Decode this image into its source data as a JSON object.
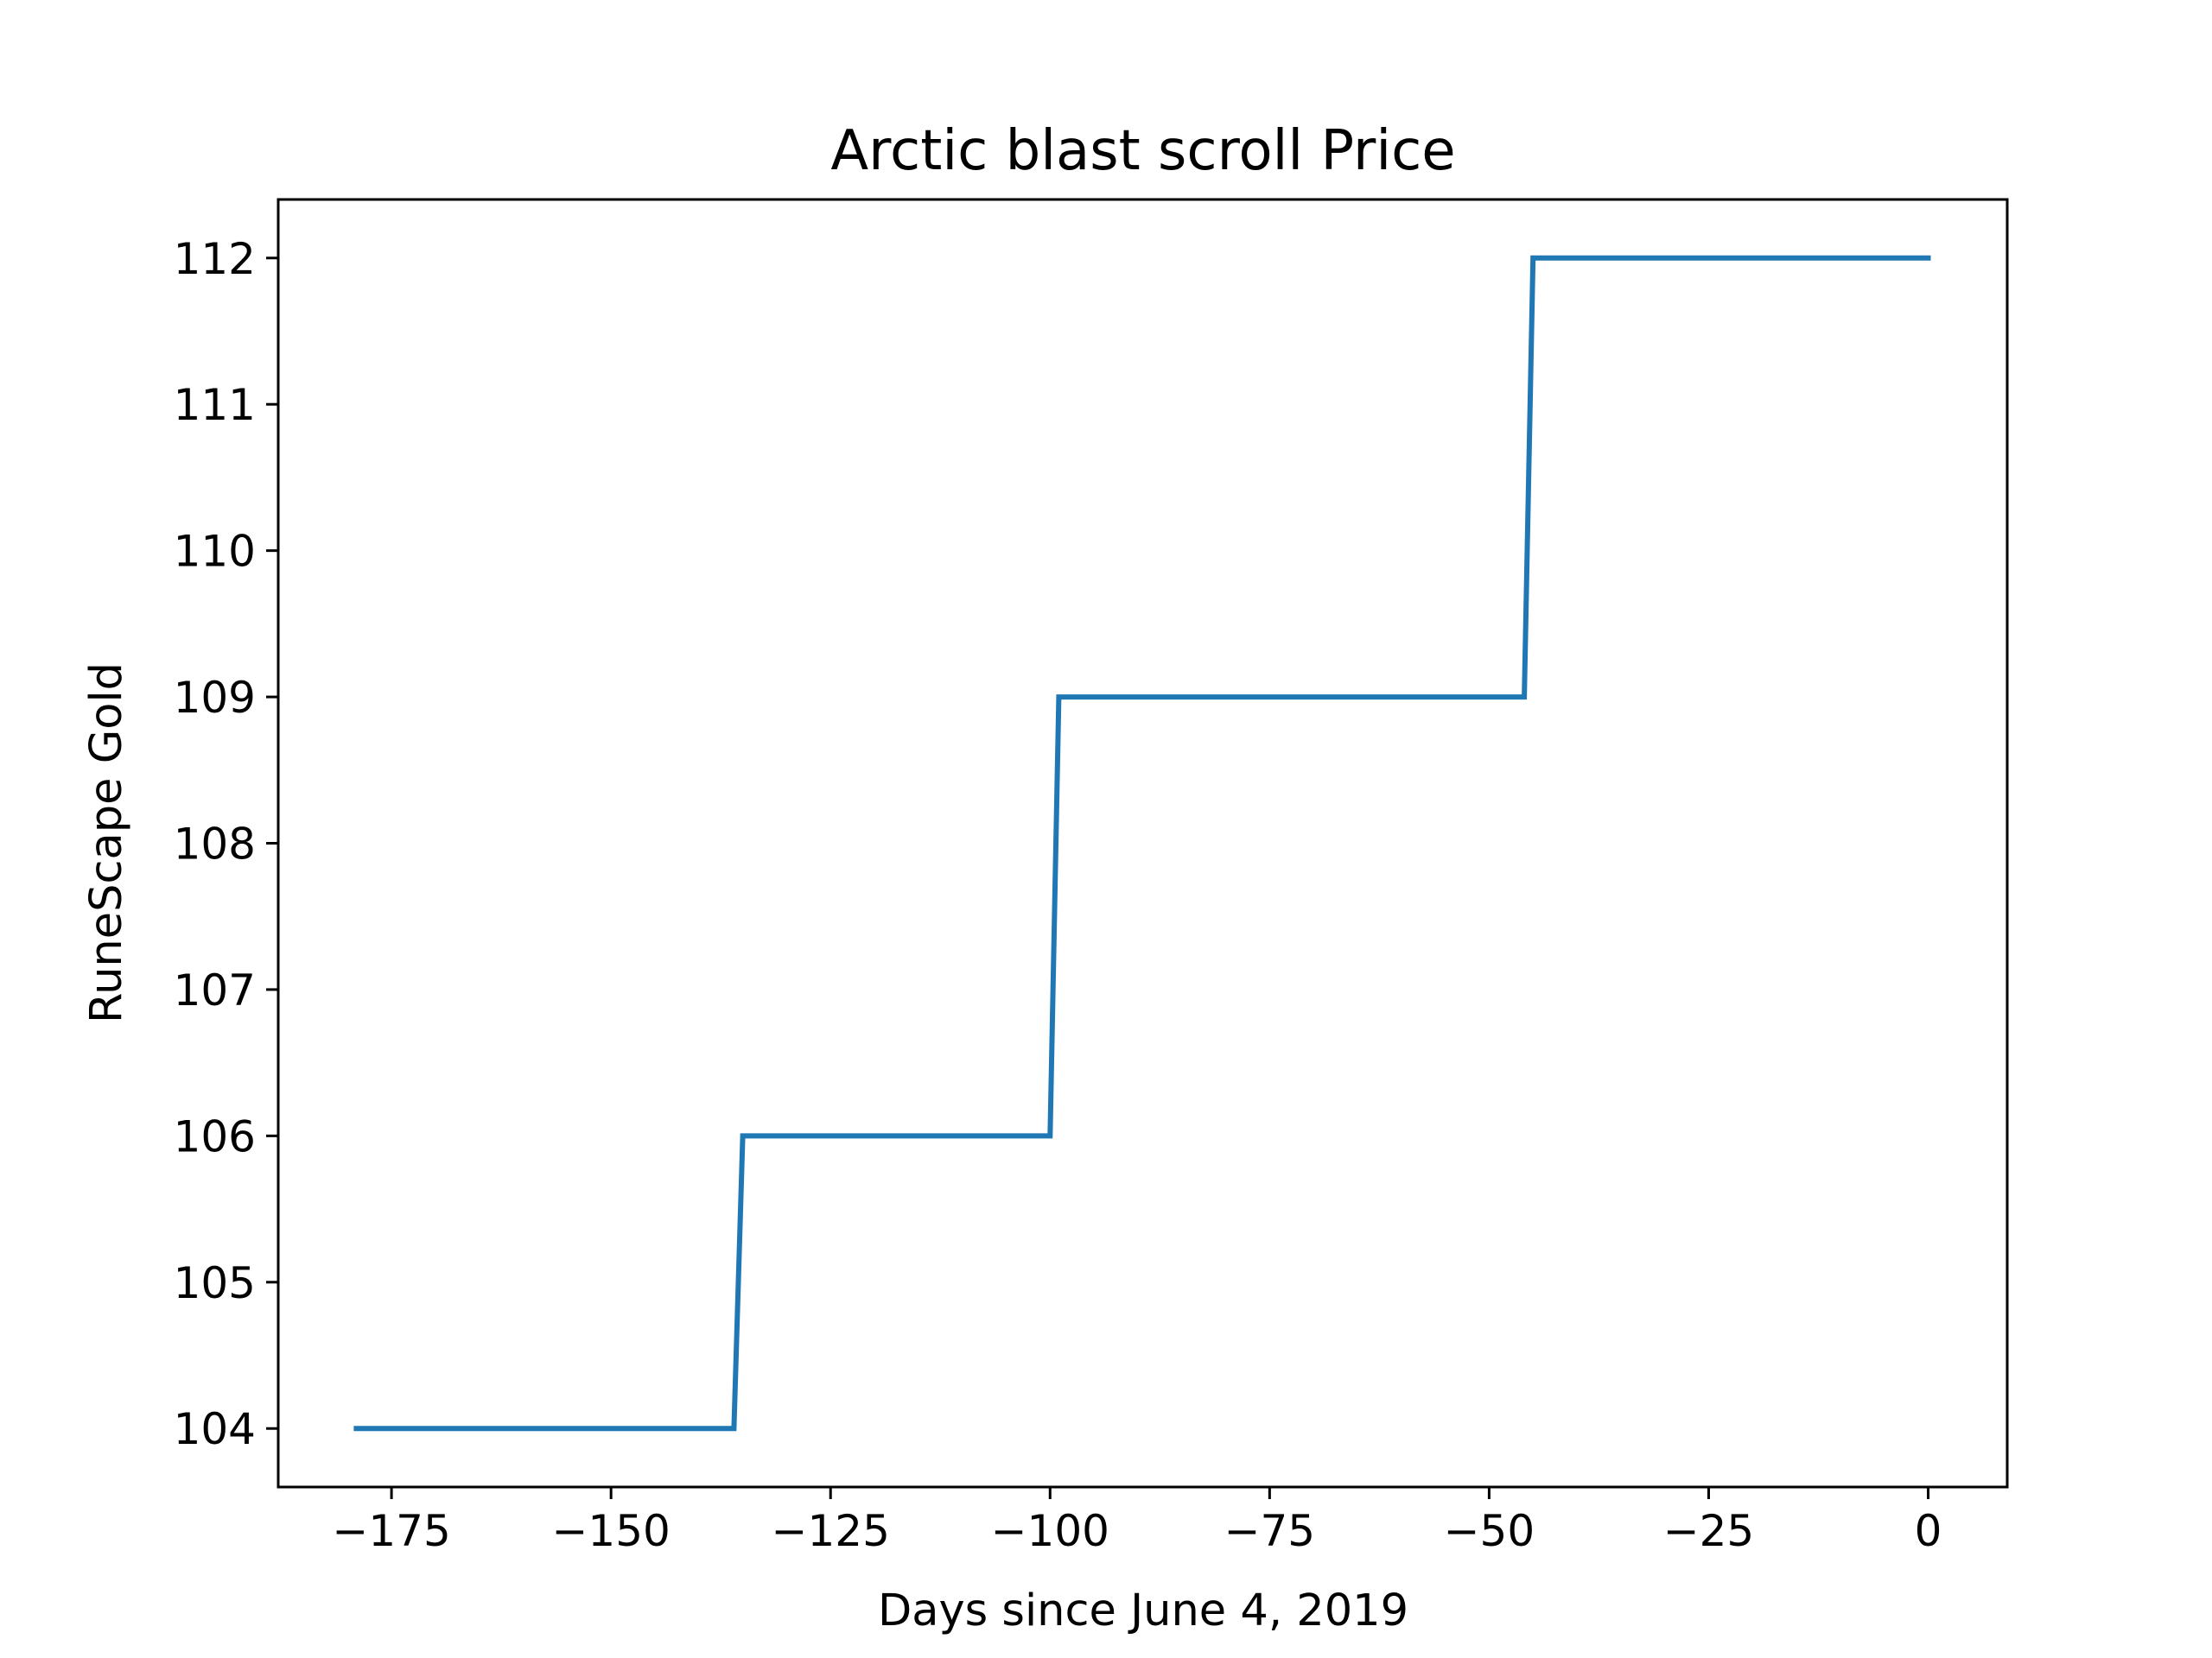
{
  "chart_data": {
    "type": "line",
    "title": "Arctic blast scroll Price",
    "xlabel": "Days since June 4, 2019",
    "ylabel": "RuneScape Gold",
    "xlim": [
      -187.9,
      9
    ],
    "ylim": [
      103.6,
      112.4
    ],
    "xticks": [
      -175,
      -150,
      -125,
      -100,
      -75,
      -50,
      -25,
      0
    ],
    "xtick_labels": [
      "−175",
      "−150",
      "−125",
      "−100",
      "−75",
      "−50",
      "−25",
      "0"
    ],
    "yticks": [
      104,
      105,
      106,
      107,
      108,
      109,
      110,
      111,
      112
    ],
    "ytick_labels": [
      "104",
      "105",
      "106",
      "107",
      "108",
      "109",
      "110",
      "111",
      "112"
    ],
    "grid": false,
    "series": [
      {
        "color": "#1f77b4",
        "x": [
          -179,
          -136,
          -135,
          -100,
          -99,
          -46,
          -45,
          0
        ],
        "y": [
          104,
          104,
          106,
          106,
          109,
          109,
          112,
          112
        ]
      }
    ]
  }
}
